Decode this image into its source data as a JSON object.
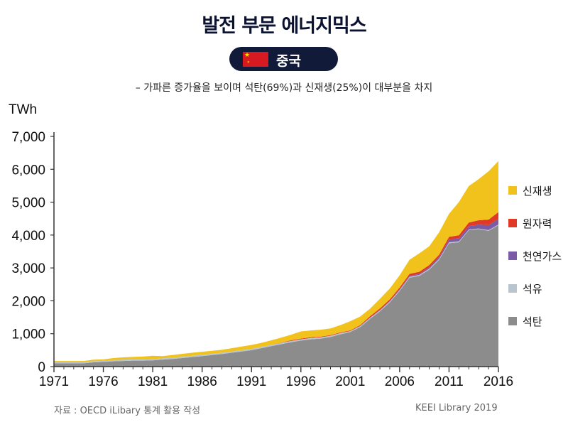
{
  "header": {
    "title": "발전 부문 에너지믹스",
    "country": "중국",
    "subtitle": "– 가파른 증가율을 보이며 석탄(69%)과 신재생(25%)이 대부분을 차지"
  },
  "footer": {
    "source": "자료 : OECD iLibary  통계 활용 작성",
    "credit": "KEEI Library 2019"
  },
  "chart_data": {
    "type": "area",
    "stacked": true,
    "ylabel": "TWh",
    "ylim": [
      0,
      7000
    ],
    "yticks": [
      0,
      1000,
      2000,
      3000,
      4000,
      5000,
      6000,
      7000
    ],
    "ytick_labels": [
      "0",
      "1,000",
      "2,000",
      "3,000",
      "4,000",
      "5,000",
      "6,000",
      "7,000"
    ],
    "xlim": [
      1971,
      2016
    ],
    "xticks": [
      1971,
      1976,
      1981,
      1986,
      1991,
      1996,
      2001,
      2006,
      2011,
      2016
    ],
    "x": [
      1971,
      1972,
      1973,
      1974,
      1975,
      1976,
      1977,
      1978,
      1979,
      1980,
      1981,
      1982,
      1983,
      1984,
      1985,
      1986,
      1987,
      1988,
      1989,
      1990,
      1991,
      1992,
      1993,
      1994,
      1995,
      1996,
      1997,
      1998,
      1999,
      2000,
      2001,
      2002,
      2003,
      2004,
      2005,
      2006,
      2007,
      2008,
      2009,
      2010,
      2011,
      2012,
      2013,
      2014,
      2015,
      2016
    ],
    "legend_position": "right",
    "series": [
      {
        "name": "석탄",
        "color": "#8c8c8c",
        "values": [
          100,
          100,
          100,
          100,
          130,
          140,
          160,
          170,
          180,
          180,
          190,
          210,
          230,
          260,
          290,
          320,
          350,
          380,
          420,
          460,
          500,
          560,
          620,
          680,
          740,
          790,
          830,
          850,
          900,
          980,
          1050,
          1200,
          1450,
          1680,
          1950,
          2300,
          2700,
          2760,
          2950,
          3250,
          3750,
          3780,
          4150,
          4180,
          4130,
          4300
        ]
      },
      {
        "name": "석유",
        "color": "#b8c4ce",
        "values": [
          30,
          30,
          30,
          30,
          35,
          35,
          40,
          40,
          45,
          45,
          40,
          40,
          40,
          40,
          40,
          40,
          40,
          40,
          40,
          40,
          40,
          40,
          40,
          40,
          40,
          40,
          40,
          40,
          40,
          40,
          30,
          30,
          30,
          30,
          30,
          30,
          30,
          30,
          30,
          30,
          30,
          30,
          20,
          20,
          20,
          20
        ]
      },
      {
        "name": "천연가스",
        "color": "#7b5aa6",
        "values": [
          0,
          0,
          0,
          0,
          0,
          0,
          0,
          0,
          0,
          0,
          0,
          0,
          0,
          0,
          0,
          0,
          0,
          0,
          0,
          0,
          0,
          0,
          0,
          0,
          0,
          0,
          0,
          0,
          0,
          0,
          0,
          10,
          10,
          10,
          15,
          25,
          30,
          30,
          40,
          50,
          80,
          90,
          100,
          120,
          150,
          170
        ]
      },
      {
        "name": "원자력",
        "color": "#e03a27",
        "values": [
          0,
          0,
          0,
          0,
          0,
          0,
          0,
          0,
          0,
          0,
          0,
          0,
          0,
          0,
          0,
          0,
          0,
          0,
          0,
          0,
          0,
          0,
          0,
          10,
          20,
          20,
          20,
          20,
          20,
          20,
          20,
          20,
          40,
          50,
          50,
          50,
          60,
          65,
          70,
          75,
          85,
          95,
          110,
          130,
          170,
          210
        ]
      },
      {
        "name": "신재생",
        "color": "#f2c21c",
        "values": [
          40,
          40,
          40,
          40,
          45,
          45,
          60,
          70,
          70,
          80,
          100,
          70,
          80,
          90,
          90,
          90,
          90,
          90,
          100,
          110,
          120,
          120,
          140,
          150,
          170,
          220,
          210,
          210,
          200,
          220,
          280,
          260,
          230,
          290,
          330,
          370,
          430,
          560,
          570,
          680,
          700,
          1010,
          1110,
          1250,
          1470,
          1550
        ]
      }
    ]
  }
}
